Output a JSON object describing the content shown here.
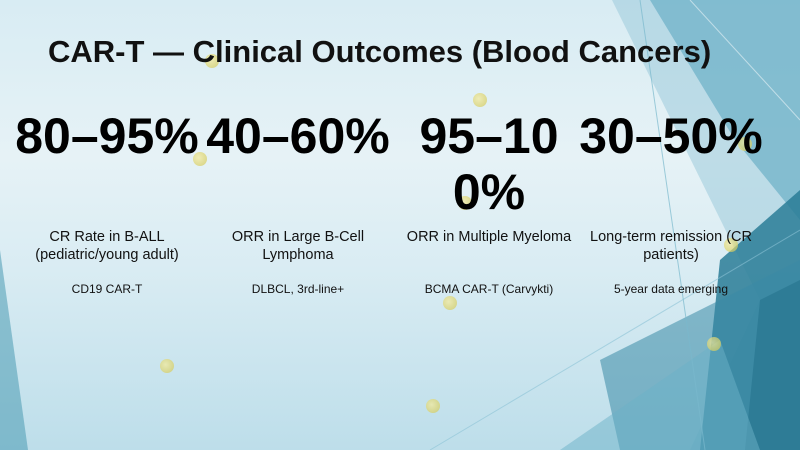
{
  "slide": {
    "title": "CAR-T — Clinical Outcomes (Blood Cancers)"
  },
  "metrics": [
    {
      "value": "80–95%",
      "label": "CR Rate in B-ALL (pediatric/young adult)",
      "note": "CD19 CAR-T"
    },
    {
      "value": "40–60%",
      "label": "ORR in Large B-Cell Lymphoma",
      "note": "DLBCL, 3rd-line+"
    },
    {
      "value": "95–100%",
      "label": "ORR in Multiple Myeloma",
      "note": "BCMA CAR-T (Carvykti)"
    },
    {
      "value": "30–50%",
      "label": "Long-term remission (CR patients)",
      "note": "5-year data emerging"
    }
  ],
  "colors": {
    "background": "#e0eff5",
    "accent_teal_dark": "#1f6f88",
    "accent_teal_mid": "#3f8fa8",
    "accent_teal_light": "#8cc3d6",
    "text": "#111111"
  }
}
